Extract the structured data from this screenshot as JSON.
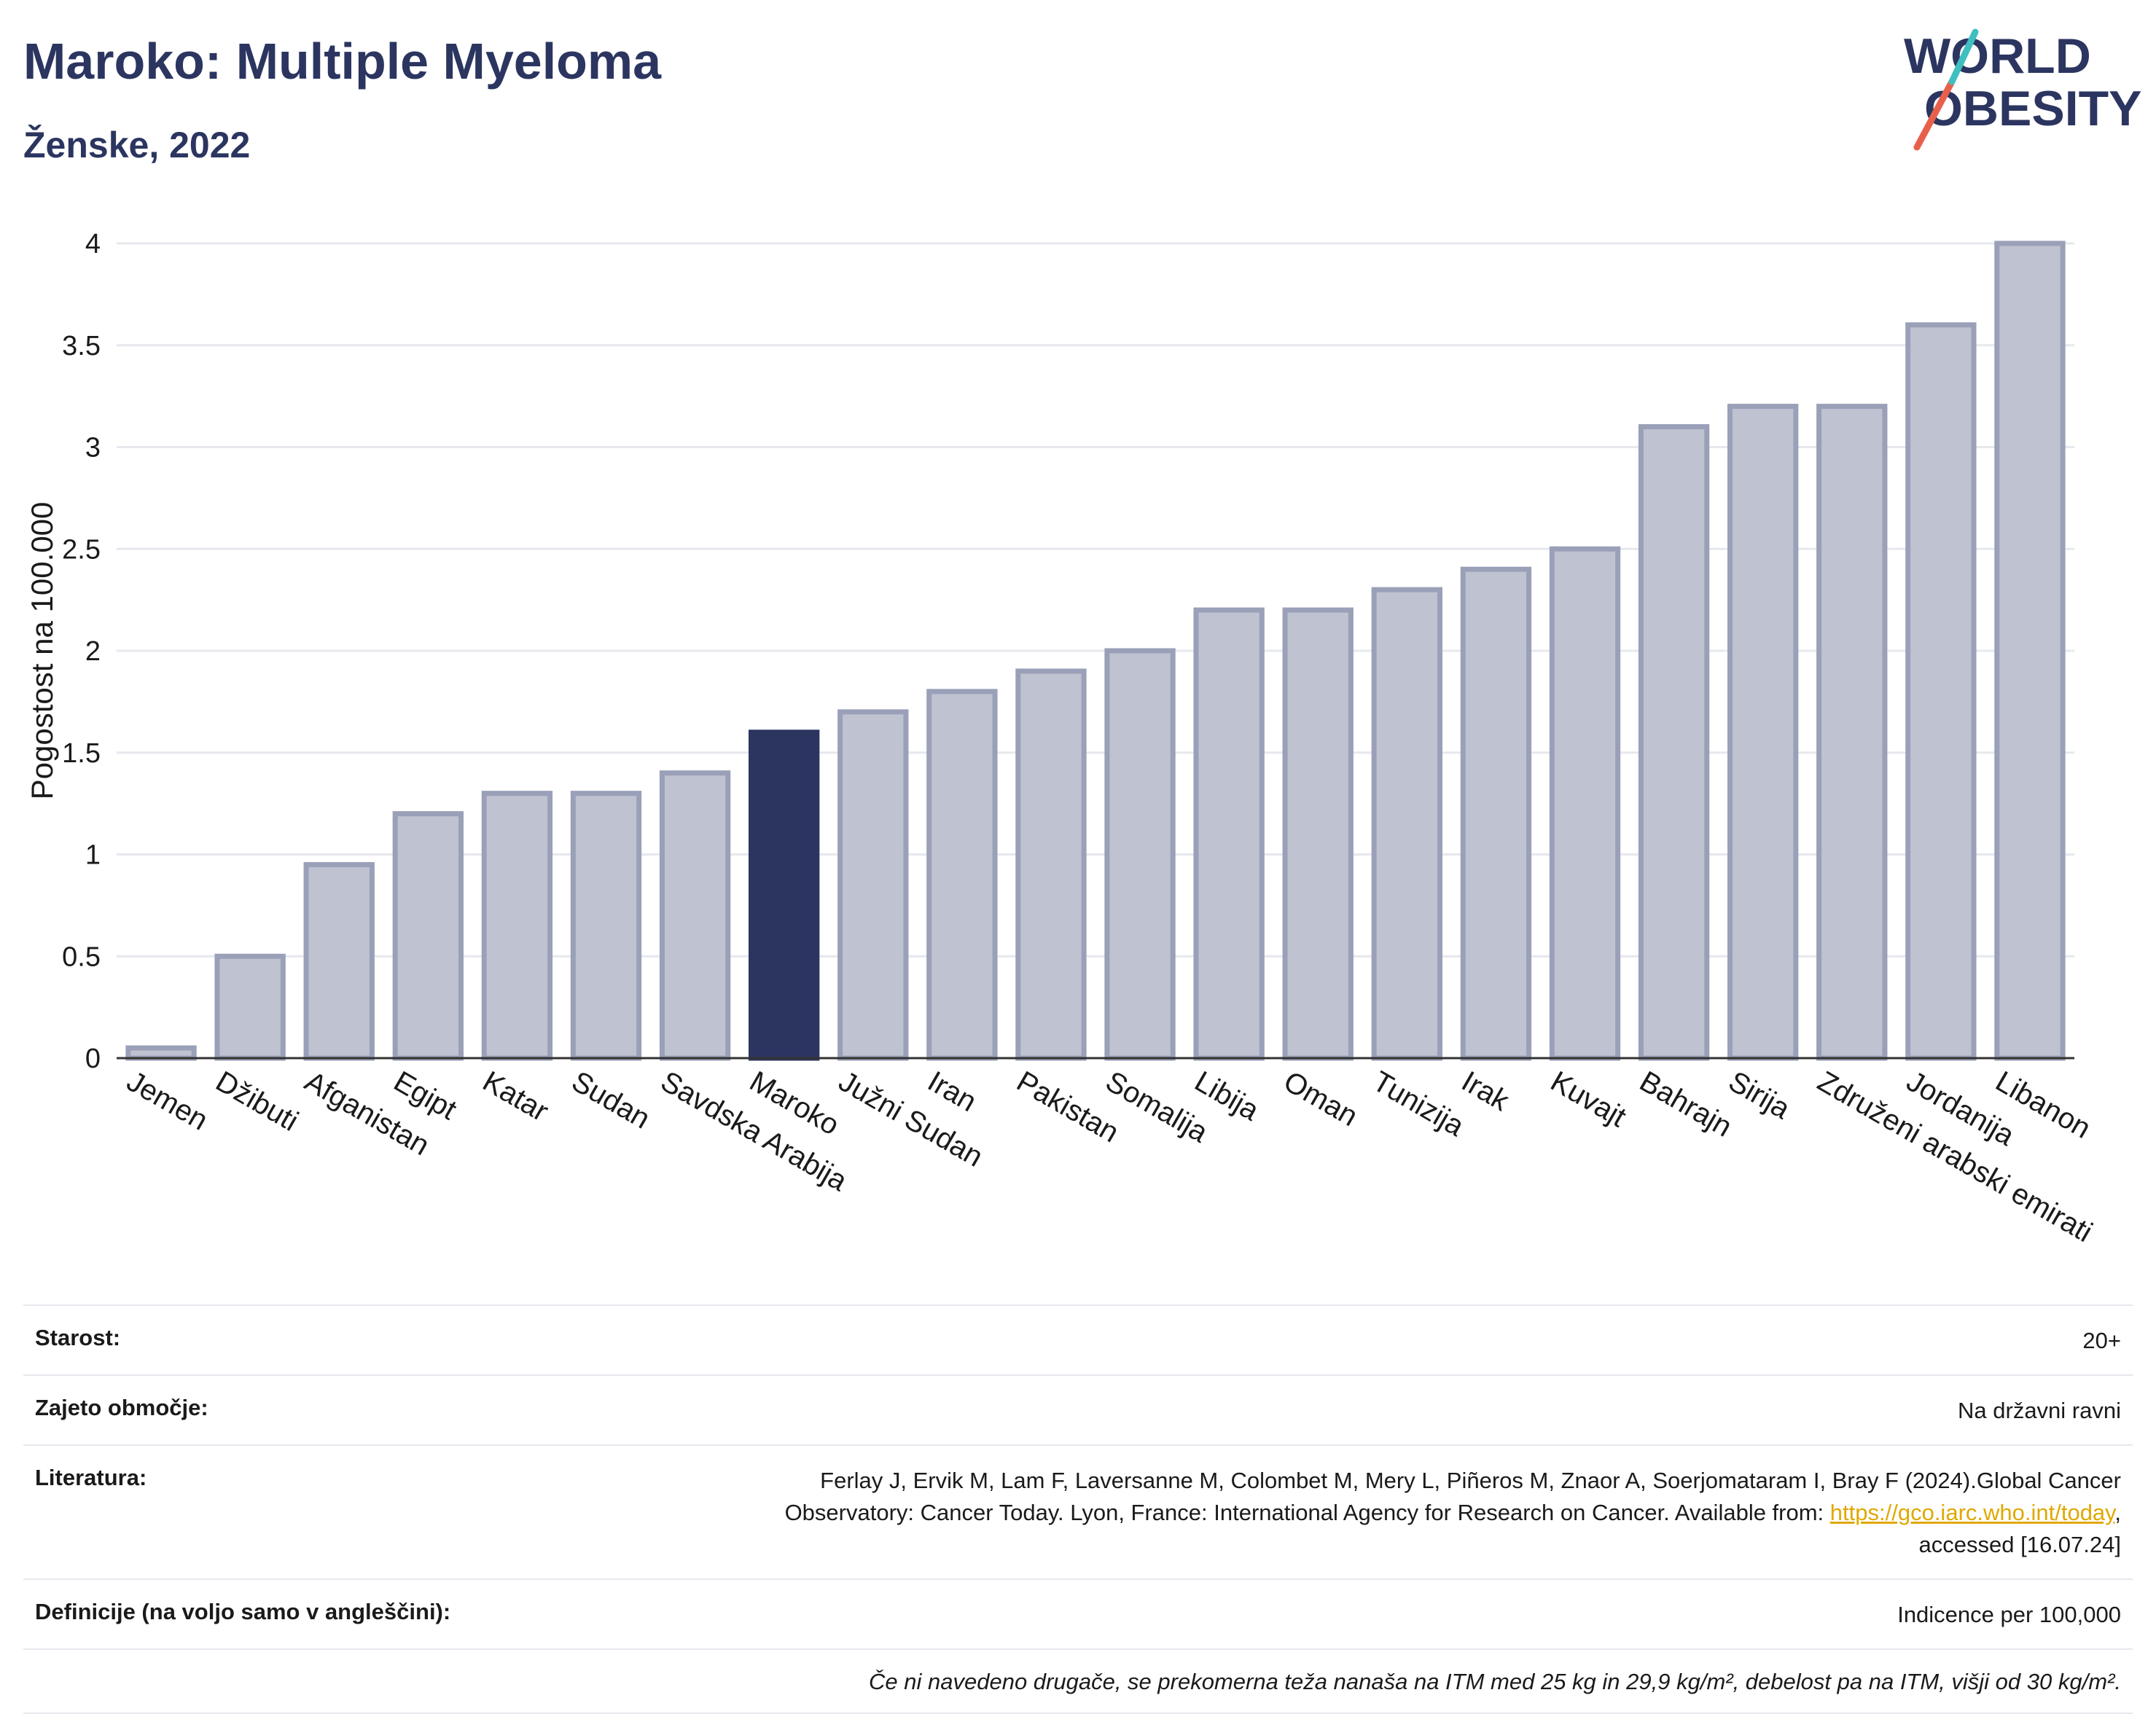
{
  "title": "Maroko: Multiple Myeloma",
  "subtitle": "Ženske, 2022",
  "logo": {
    "line1": "WORLD",
    "line2": "OBESITY",
    "accent_color": "#e8604c",
    "accent_color2": "#3fbfbf",
    "text_color": "#2b3560"
  },
  "colors": {
    "highlight": "#2b3560",
    "bar": "#bfc2d0",
    "bar_border": "#9aa0b8",
    "grid": "#e6e8ee",
    "axis": "#333333"
  },
  "chart_data": {
    "type": "bar",
    "ylabel": "Pogostost na 100.000",
    "ylim": [
      0,
      4
    ],
    "yticks": [
      0,
      0.5,
      1,
      1.5,
      2,
      2.5,
      3,
      3.5,
      4
    ],
    "ytick_labels": [
      "0",
      "0.5",
      "1",
      "1.5",
      "2",
      "2.5",
      "3",
      "3.5",
      "4"
    ],
    "grid": true,
    "highlight": "Maroko",
    "categories": [
      "Jemen",
      "Džibuti",
      "Afganistan",
      "Egipt",
      "Katar",
      "Sudan",
      "Savdska Arabija",
      "Maroko",
      "Južni Sudan",
      "Iran",
      "Pakistan",
      "Somalija",
      "Libija",
      "Oman",
      "Tunizija",
      "Irak",
      "Kuvajt",
      "Bahrajn",
      "Sirija",
      "Združeni arabski emirati",
      "Jordanija",
      "Libanon"
    ],
    "values": [
      0.05,
      0.5,
      0.95,
      1.2,
      1.3,
      1.3,
      1.4,
      1.6,
      1.7,
      1.8,
      1.9,
      2.0,
      2.2,
      2.2,
      2.3,
      2.4,
      2.5,
      3.1,
      3.2,
      3.2,
      3.6,
      4.0
    ]
  },
  "meta": {
    "age_label": "Starost:",
    "age_value": "20+",
    "coverage_label": "Zajeto območje:",
    "coverage_value": "Na državni ravni",
    "literature_label": "Literatura:",
    "literature_line1": "Ferlay J, Ervik M, Lam F, Laversanne M, Colombet M, Mery L, Piñeros M, Znaor A, Soerjomataram I, Bray F (2024).Global Cancer",
    "literature_line2": "Observatory: Cancer Today. Lyon, France: International Agency for Research on Cancer. Available from: ",
    "literature_link": "https://gco.iarc.who.int/today",
    "literature_line2_end": ",",
    "literature_line3": "accessed [16.07.24]",
    "definitions_label": "Definicije (na voljo samo v angleščini):",
    "definitions_value": "Indicence per 100,000",
    "note": "Če ni navedeno drugače, se prekomerna teža nanaša na ITM med 25 kg in 29,9 kg/m², debelost pa na ITM, višji od 30 kg/m²."
  }
}
